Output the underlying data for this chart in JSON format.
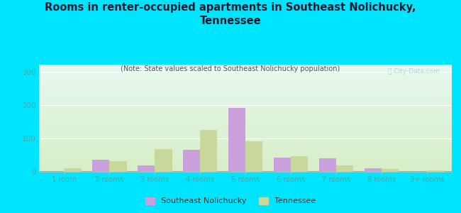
{
  "title": "Rooms in renter-occupied apartments in Southeast Nolichucky,\nTennessee",
  "subtitle": "(Note: State values scaled to Southeast Nolichucky population)",
  "categories": [
    "1 room",
    "2 rooms",
    "3 rooms",
    "4 rooms",
    "5 rooms",
    "6 rooms",
    "7 rooms",
    "8 rooms",
    "9+ rooms"
  ],
  "southeast_nolichucky": [
    0,
    35,
    18,
    65,
    190,
    42,
    40,
    9,
    0
  ],
  "tennessee": [
    10,
    32,
    68,
    125,
    90,
    46,
    18,
    8,
    3
  ],
  "color_nolichucky": "#c9a0dc",
  "color_tennessee": "#c8d89a",
  "background_outer": "#00e5ff",
  "grad_top": "#e8f8f0",
  "grad_bot": "#d8eec8",
  "ylim": [
    0,
    320
  ],
  "yticks": [
    0,
    100,
    200,
    300
  ],
  "bar_width": 0.38,
  "legend_nolichucky": "Southeast Nolichucky",
  "legend_tennessee": "Tennessee",
  "title_color": "#1a1a2e",
  "subtitle_color": "#555555",
  "tick_color": "#44aaaa"
}
